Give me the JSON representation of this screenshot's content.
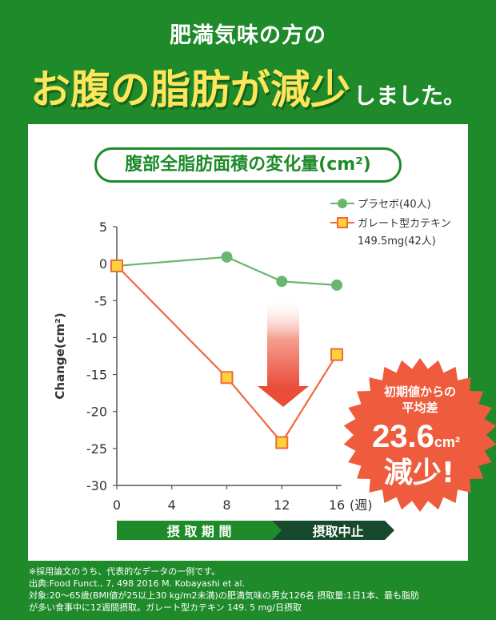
{
  "headline": {
    "line1": "肥満気味の方の",
    "emphasis": "お腹の脂肪が減少",
    "suffix": "しました。"
  },
  "chart_title_pill": "腹部全脂肪面積の変化量(cm²)",
  "chart_data": {
    "type": "line",
    "title": "腹部全脂肪面積の変化量(cm²)",
    "xlabel": "(週)",
    "ylabel": "Change(cm²)",
    "ylim": [
      -30,
      5
    ],
    "xlim": [
      0,
      16
    ],
    "y_ticks": [
      5,
      0,
      -5,
      -10,
      -15,
      -20,
      -25,
      -30
    ],
    "x_ticks": [
      0,
      4,
      8,
      12,
      16
    ],
    "grid": false,
    "legend_position": "top-right",
    "series": [
      {
        "name": "プラセボ(40人)",
        "legend_line1": "プラセボ(40人)",
        "legend_line2": "",
        "marker": "circle",
        "color": "#6ab56f",
        "x": [
          0,
          8,
          12,
          16
        ],
        "values": [
          -0.3,
          0.9,
          -2.4,
          -2.9
        ]
      },
      {
        "name": "ガレート型カテキン 149.5mg(42人)",
        "legend_line1": "ガレート型カテキン",
        "legend_line2": "149.5mg(42人)",
        "marker": "square",
        "color": "#ee6a3c",
        "fill": "#fcd33a",
        "x": [
          0,
          8,
          12,
          16
        ],
        "values": [
          -0.3,
          -15.4,
          -24.2,
          -12.3
        ]
      }
    ],
    "phases": [
      {
        "label": "摂 取 期 間",
        "from": 0,
        "to": 12,
        "color": "#1e8a2a"
      },
      {
        "label": "摂取中止",
        "from": 12,
        "to": 16,
        "color": "#174a2c"
      }
    ]
  },
  "badge": {
    "line1": "初期値からの",
    "line2": "平均差",
    "value": "23.6",
    "unit": "cm²",
    "result": "減少!"
  },
  "footnotes": [
    "※採用論文のうち、代表的なデータの一例です。",
    "出典:Food Funct., 7, 498 2016 M. Kobayashi et al.",
    "対象:20〜65歳(BMI値が25以上30 kg/m2未満)の肥満気味の男女126名 摂取量:1日1本、最も脂肪",
    "が多い食事中に12週間摂取。ガレート型カテキン 149. 5 mg/日摂取"
  ],
  "colors": {
    "background": "#1e8a2a",
    "emphasis": "#fde55c",
    "badge": "#ee5b3d"
  }
}
